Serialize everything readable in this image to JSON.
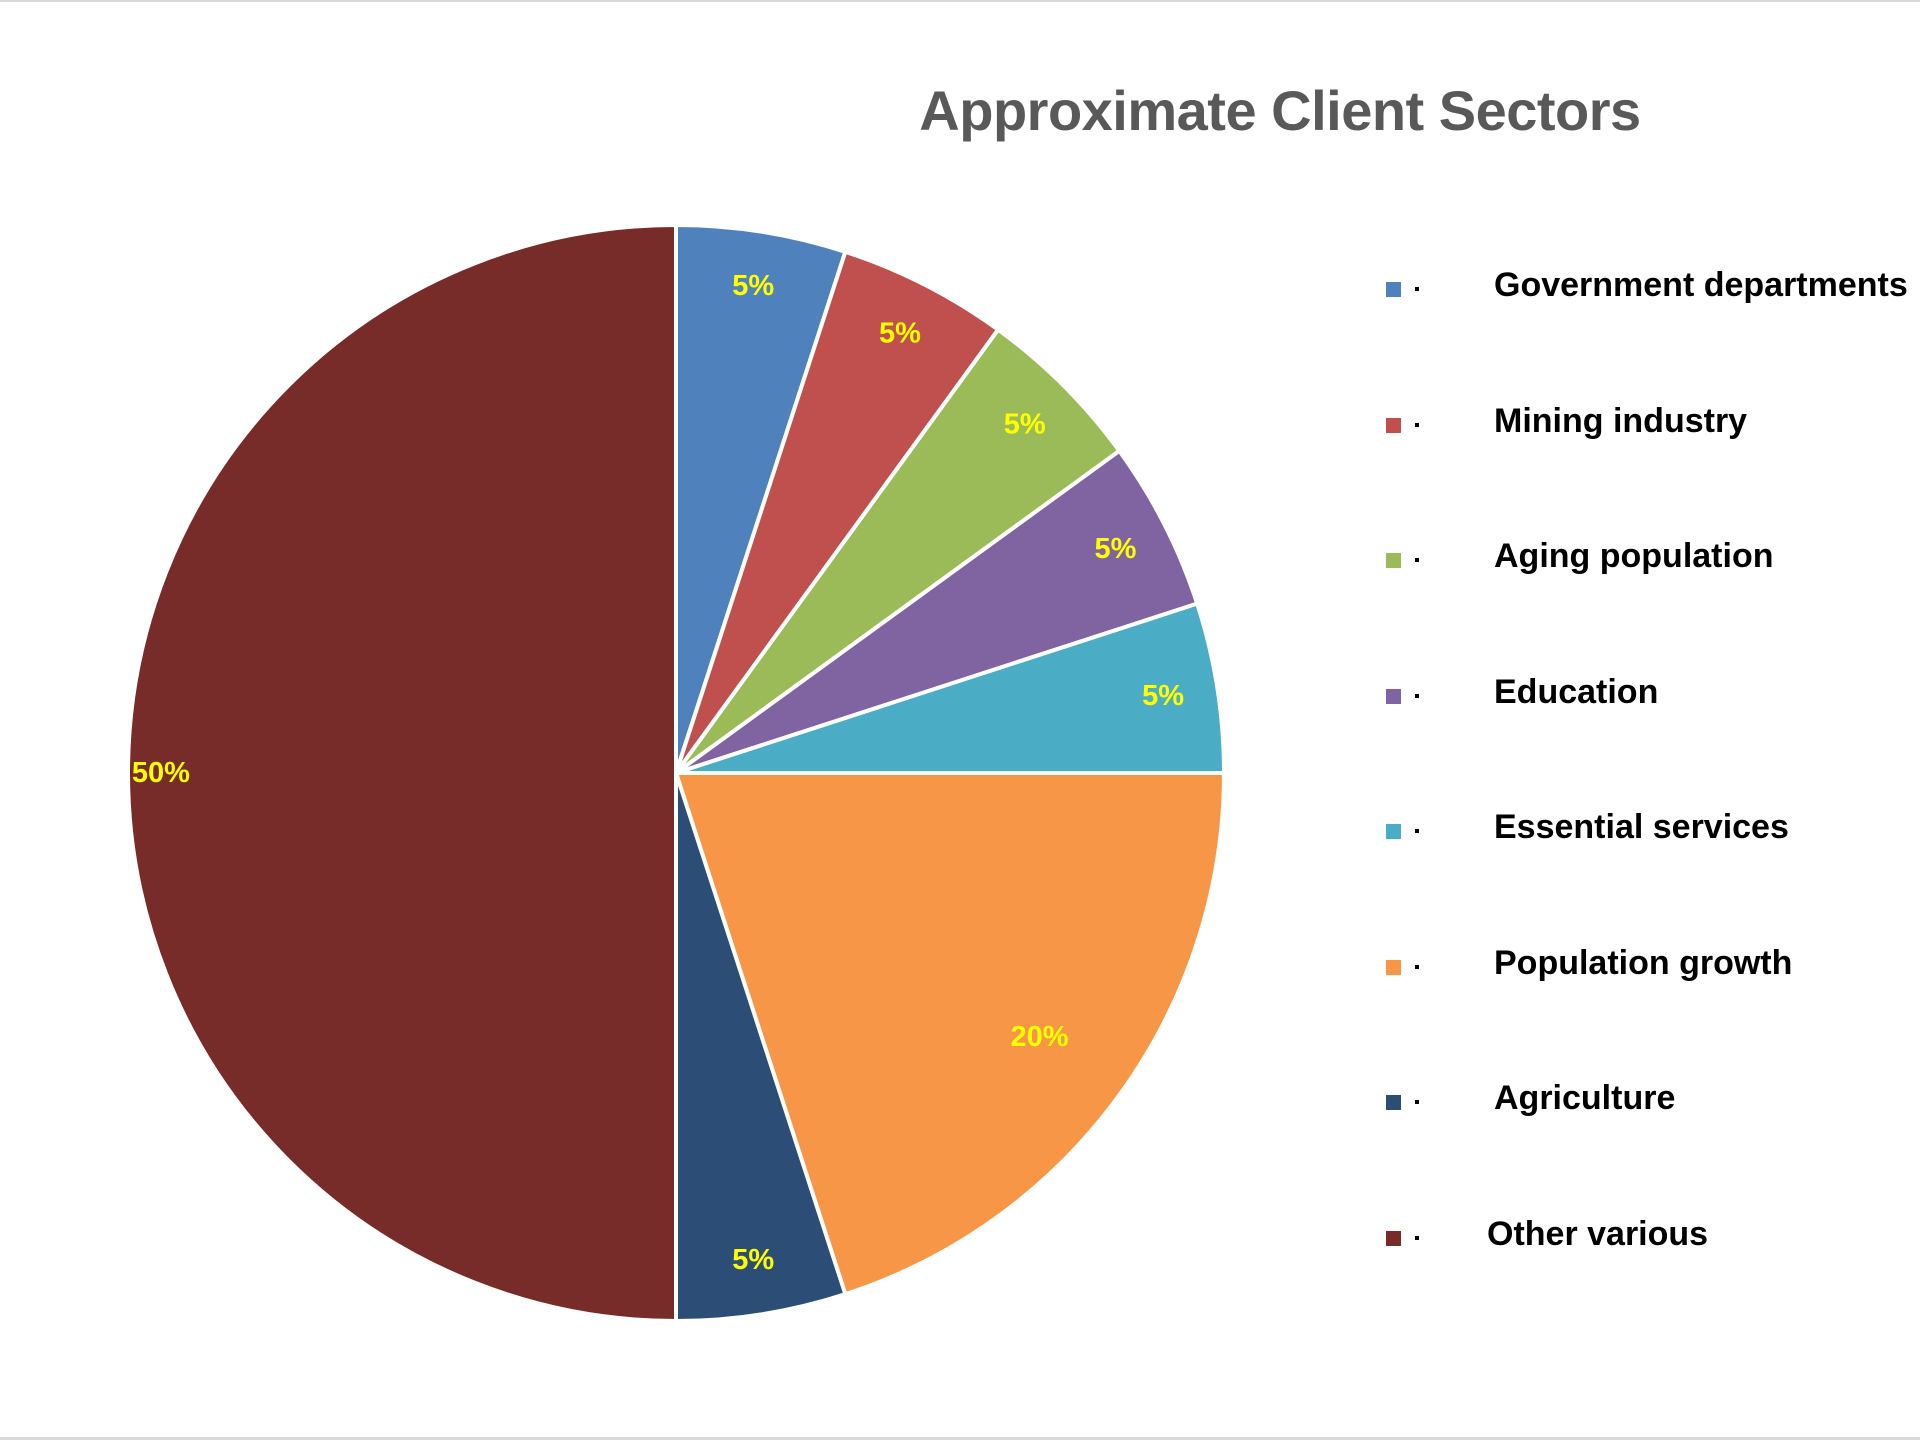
{
  "chart_data": {
    "type": "pie",
    "title": "Approximate Client Sectors",
    "categories": [
      "Government departments",
      "Mining industry",
      "Aging population",
      "Education",
      "Essential services",
      "Population growth",
      "Agriculture",
      "Other various"
    ],
    "values": [
      5,
      5,
      5,
      5,
      5,
      20,
      5,
      50
    ],
    "data_labels": [
      "5%",
      "5%",
      "5%",
      "5%",
      "5%",
      "20%",
      "5%",
      "50%"
    ],
    "colors": [
      "#4f81bd",
      "#c0504d",
      "#9bbb59",
      "#8064a2",
      "#4bacc6",
      "#f79646",
      "#2c4d75",
      "#772c2a"
    ],
    "label_color": "#ffff00",
    "legend_position": "right",
    "start_angle": "12 o'clock",
    "direction": "clockwise"
  }
}
